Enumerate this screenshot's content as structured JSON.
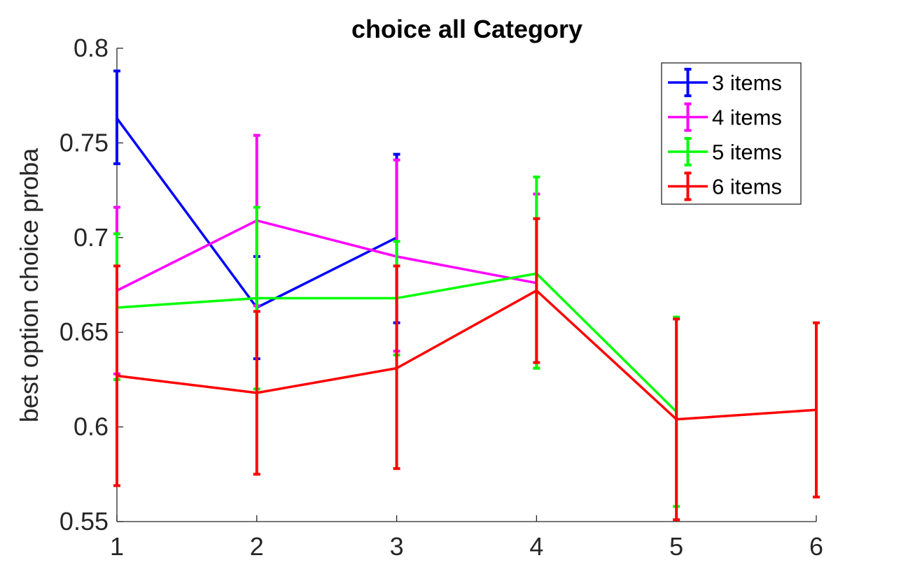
{
  "chart_data": {
    "type": "line",
    "title": "choice all Category",
    "xlabel": "",
    "ylabel": "best option choice proba",
    "xlim": [
      1,
      6
    ],
    "ylim": [
      0.55,
      0.8
    ],
    "xticks": [
      1,
      2,
      3,
      4,
      5,
      6
    ],
    "xtick_labels": [
      "1",
      "2",
      "3",
      "4",
      "5",
      "6"
    ],
    "yticks": [
      0.55,
      0.6,
      0.65,
      0.7,
      0.75,
      0.8
    ],
    "ytick_labels": [
      "0.55",
      "0.6",
      "0.65",
      "0.7",
      "0.75",
      "0.8"
    ],
    "grid": false,
    "legend_position": "top-right",
    "error_bars": true,
    "series": [
      {
        "name": "3 items",
        "color": "#0000ff",
        "x": [
          1,
          2,
          3
        ],
        "values": [
          0.763,
          0.663,
          0.7
        ],
        "lower": [
          0.739,
          0.636,
          0.655
        ],
        "upper": [
          0.788,
          0.69,
          0.744
        ]
      },
      {
        "name": "4 items",
        "color": "#ff00ff",
        "x": [
          1,
          2,
          3,
          4
        ],
        "values": [
          0.672,
          0.709,
          0.69,
          0.676
        ],
        "lower": [
          0.628,
          0.664,
          0.64,
          0.631
        ],
        "upper": [
          0.716,
          0.754,
          0.741,
          0.723
        ]
      },
      {
        "name": "5 items",
        "color": "#00ff00",
        "x": [
          1,
          2,
          3,
          4,
          5
        ],
        "values": [
          0.663,
          0.668,
          0.668,
          0.681,
          0.608
        ],
        "lower": [
          0.625,
          0.62,
          0.638,
          0.631,
          0.558
        ],
        "upper": [
          0.702,
          0.716,
          0.698,
          0.732,
          0.658
        ]
      },
      {
        "name": "6 items",
        "color": "#ff0000",
        "x": [
          1,
          2,
          3,
          4,
          5,
          6
        ],
        "values": [
          0.627,
          0.618,
          0.631,
          0.672,
          0.604,
          0.609
        ],
        "lower": [
          0.569,
          0.575,
          0.578,
          0.634,
          0.551,
          0.563
        ],
        "upper": [
          0.685,
          0.661,
          0.685,
          0.71,
          0.657,
          0.655
        ]
      }
    ]
  }
}
